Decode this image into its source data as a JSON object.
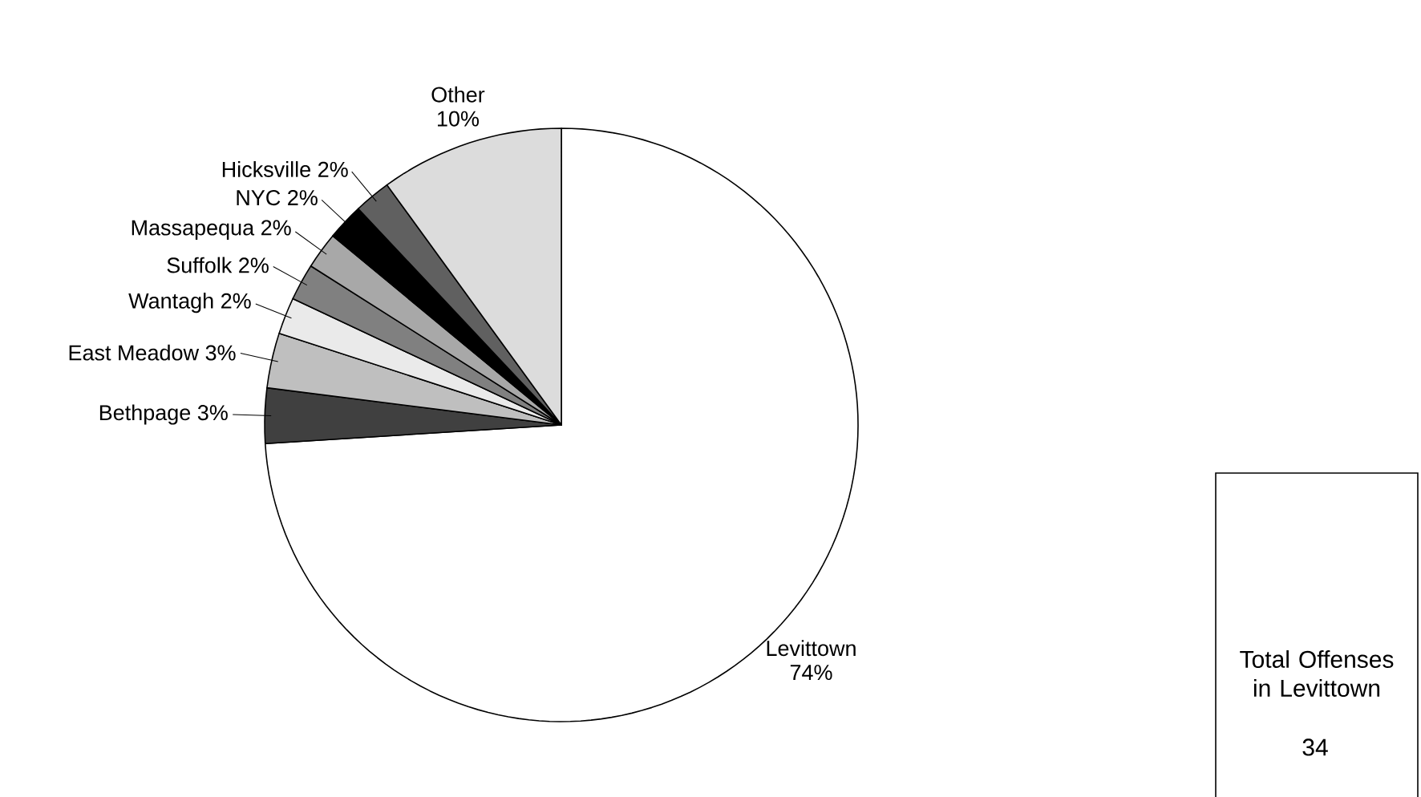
{
  "chart_data": {
    "type": "pie",
    "categories": [
      "Levittown",
      "Bethpage",
      "East Meadow",
      "Wantagh",
      "Suffolk",
      "Massapequa",
      "NYC",
      "Hicksville",
      "Other"
    ],
    "values": [
      74,
      3,
      3,
      2,
      2,
      2,
      2,
      2,
      10
    ],
    "colors": [
      "#ffffff",
      "#404040",
      "#bfbfbf",
      "#eaeaea",
      "#808080",
      "#a8a8a8",
      "#000000",
      "#606060",
      "#dcdcdc"
    ],
    "value_labels": [
      "74%",
      "3%",
      "3%",
      "2%",
      "2%",
      "2%",
      "2%",
      "2%",
      "10%"
    ],
    "annotations": [
      "Total Offenses in Levittown",
      "34"
    ]
  }
}
